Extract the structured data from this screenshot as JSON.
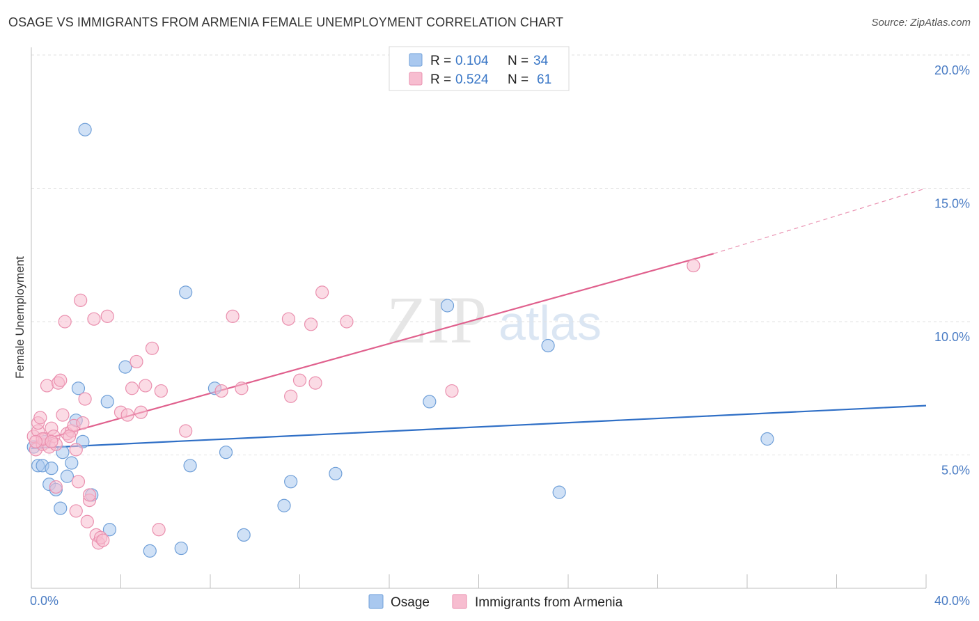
{
  "chart_data": {
    "type": "scatter",
    "title": "OSAGE VS IMMIGRANTS FROM ARMENIA FEMALE UNEMPLOYMENT CORRELATION CHART",
    "source": "Source: ZipAtlas.com",
    "ylabel": "Female Unemployment",
    "xlabel": "",
    "xlim": [
      0,
      40
    ],
    "ylim": [
      0,
      20
    ],
    "x_tick_labels": [
      "0.0%",
      "40.0%"
    ],
    "y_ticks": [
      5,
      10,
      15,
      20
    ],
    "y_tick_labels": [
      "5.0%",
      "10.0%",
      "15.0%",
      "20.0%"
    ],
    "watermark": {
      "zip": "ZIP",
      "atlas": "atlas"
    },
    "legend": [
      {
        "r_label": "R =",
        "r_value": "0.104",
        "n_label": "N =",
        "n_value": "34"
      },
      {
        "r_label": "R =",
        "r_value": "0.524",
        "n_label": "N =",
        "n_value": "61"
      }
    ],
    "series": [
      {
        "name": "Osage",
        "color": "#a9c8ef",
        "stroke": "#6f9fd8",
        "line_color": "#2f6fc6",
        "trend": {
          "x0": 0,
          "y0": 5.25,
          "x1": 40,
          "y1": 6.85
        },
        "points": [
          [
            0.1,
            5.3
          ],
          [
            0.3,
            4.6
          ],
          [
            0.5,
            4.6
          ],
          [
            0.6,
            5.5
          ],
          [
            0.8,
            3.9
          ],
          [
            0.9,
            4.5
          ],
          [
            1.1,
            3.7
          ],
          [
            1.3,
            3.0
          ],
          [
            1.4,
            5.1
          ],
          [
            1.6,
            4.2
          ],
          [
            1.8,
            4.7
          ],
          [
            2.0,
            6.3
          ],
          [
            2.1,
            7.5
          ],
          [
            2.3,
            5.5
          ],
          [
            2.4,
            17.2
          ],
          [
            2.7,
            3.5
          ],
          [
            3.5,
            2.2
          ],
          [
            3.4,
            7.0
          ],
          [
            4.2,
            8.3
          ],
          [
            5.3,
            1.4
          ],
          [
            6.7,
            1.5
          ],
          [
            6.9,
            11.1
          ],
          [
            7.1,
            4.6
          ],
          [
            8.2,
            7.5
          ],
          [
            8.7,
            5.1
          ],
          [
            9.5,
            2.0
          ],
          [
            11.3,
            3.1
          ],
          [
            11.6,
            4.0
          ],
          [
            13.6,
            4.3
          ],
          [
            17.8,
            7.0
          ],
          [
            18.6,
            10.6
          ],
          [
            23.1,
            9.1
          ],
          [
            23.6,
            3.6
          ],
          [
            32.9,
            5.6
          ]
        ]
      },
      {
        "name": "Immigrants from Armenia",
        "color": "#f7bdd0",
        "stroke": "#ea8fae",
        "line_color": "#e0608d",
        "trend": {
          "x0": 0,
          "y0": 5.45,
          "x1": 30.5,
          "y1": 12.55
        },
        "trend_ext": {
          "x0": 30.5,
          "y0": 12.55,
          "x1": 40,
          "y1": 15.0
        },
        "points": [
          [
            0.1,
            5.7
          ],
          [
            0.2,
            5.2
          ],
          [
            0.3,
            5.9
          ],
          [
            0.3,
            6.2
          ],
          [
            0.4,
            6.4
          ],
          [
            0.5,
            5.4
          ],
          [
            0.6,
            5.6
          ],
          [
            0.7,
            7.6
          ],
          [
            0.8,
            5.3
          ],
          [
            0.9,
            6.0
          ],
          [
            1.0,
            5.7
          ],
          [
            1.1,
            5.4
          ],
          [
            1.2,
            7.7
          ],
          [
            1.3,
            7.8
          ],
          [
            1.4,
            6.5
          ],
          [
            1.5,
            10.0
          ],
          [
            1.6,
            5.8
          ],
          [
            1.8,
            5.9
          ],
          [
            1.9,
            6.1
          ],
          [
            2.0,
            5.2
          ],
          [
            2.1,
            4.0
          ],
          [
            2.2,
            10.8
          ],
          [
            2.3,
            6.2
          ],
          [
            2.4,
            7.1
          ],
          [
            2.5,
            2.5
          ],
          [
            2.6,
            3.3
          ],
          [
            2.8,
            10.1
          ],
          [
            2.9,
            2.0
          ],
          [
            3.0,
            1.7
          ],
          [
            3.1,
            1.9
          ],
          [
            3.4,
            10.2
          ],
          [
            4.0,
            6.6
          ],
          [
            4.3,
            6.5
          ],
          [
            4.5,
            7.5
          ],
          [
            4.7,
            8.5
          ],
          [
            4.9,
            6.6
          ],
          [
            5.1,
            7.6
          ],
          [
            5.4,
            9.0
          ],
          [
            5.7,
            2.2
          ],
          [
            5.8,
            7.4
          ],
          [
            6.9,
            5.9
          ],
          [
            8.5,
            7.4
          ],
          [
            9.0,
            10.2
          ],
          [
            9.4,
            7.5
          ],
          [
            11.5,
            10.1
          ],
          [
            11.6,
            7.2
          ],
          [
            12.0,
            7.8
          ],
          [
            12.5,
            9.9
          ],
          [
            12.7,
            7.7
          ],
          [
            13.0,
            11.1
          ],
          [
            14.1,
            10.0
          ],
          [
            18.8,
            7.4
          ],
          [
            29.6,
            12.1
          ],
          [
            0.5,
            5.6
          ],
          [
            0.9,
            5.5
          ],
          [
            1.1,
            3.8
          ],
          [
            1.7,
            5.7
          ],
          [
            2.0,
            2.9
          ],
          [
            2.6,
            3.5
          ],
          [
            0.2,
            5.5
          ],
          [
            3.2,
            1.8
          ]
        ]
      }
    ]
  }
}
